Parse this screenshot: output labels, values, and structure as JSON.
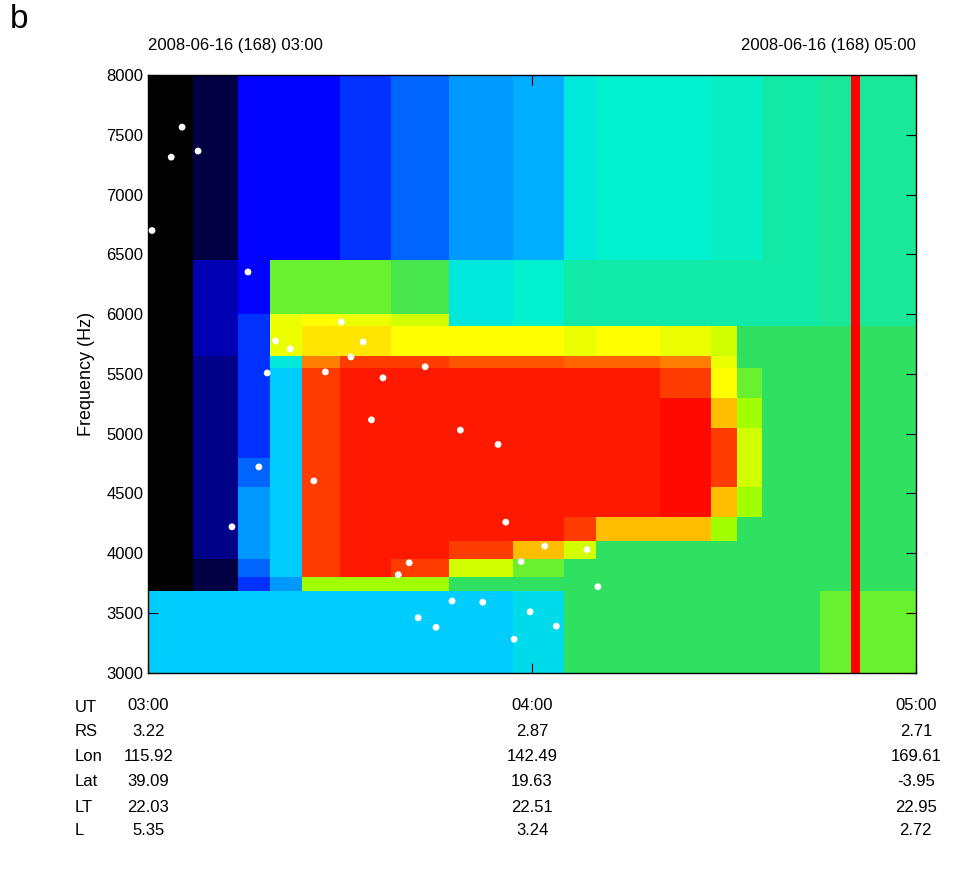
{
  "chart_data": {
    "type": "heatmap",
    "panel": "b",
    "header_left": "2008-06-16 (168) 03:00",
    "header_right": "2008-06-16 (168) 05:00",
    "ylabel": "Frequency (Hz)",
    "x_label": "UT",
    "xlim": [
      0,
      120
    ],
    "ylim": [
      3000,
      8000
    ],
    "xticks": [
      {
        "value": 0,
        "label": "03:00"
      },
      {
        "value": 60,
        "label": "04:00"
      },
      {
        "value": 120,
        "label": "05:00"
      }
    ],
    "yticks": [
      3000,
      3500,
      4000,
      4500,
      5000,
      5500,
      6000,
      6500,
      7000,
      7500,
      8000
    ],
    "grid": false,
    "ephemeris": [
      {
        "label": "RS",
        "values": [
          3.22,
          2.87,
          2.71
        ]
      },
      {
        "label": "Lon",
        "values": [
          115.92,
          142.49,
          169.61
        ]
      },
      {
        "label": "Lat",
        "values": [
          39.09,
          19.63,
          -3.95
        ]
      },
      {
        "label": "LT",
        "values": [
          22.03,
          22.51,
          22.95
        ]
      },
      {
        "label": "L",
        "values": [
          5.35,
          3.24,
          2.72
        ]
      }
    ],
    "x_edges": [
      0,
      7,
      14,
      19,
      24,
      30,
      38,
      47,
      57,
      65,
      70,
      80,
      88,
      92,
      96,
      105,
      109.8,
      111.3,
      120
    ],
    "y_edges": [
      3000,
      3340,
      3680,
      3800,
      3950,
      4100,
      4300,
      4550,
      4800,
      5050,
      5300,
      5550,
      5650,
      5900,
      6000,
      6450,
      7200,
      8000
    ],
    "color_range": [
      0,
      10
    ],
    "cells": [
      [
        4.5,
        4.5,
        4.5,
        4.5,
        4.5,
        4.5,
        4.5,
        4.5,
        4.8,
        6,
        6,
        6,
        6,
        6,
        6,
        6.5,
        10,
        6.5
      ],
      [
        4.5,
        4.5,
        4.5,
        4.5,
        4.5,
        4.5,
        4.5,
        4.5,
        4.8,
        6,
        6,
        6,
        6,
        6,
        6,
        6.5,
        10,
        6.5
      ],
      [
        0,
        0.5,
        3,
        4,
        7,
        7,
        7,
        6,
        6,
        6,
        6,
        6,
        6,
        6,
        6,
        6,
        10,
        6
      ],
      [
        0,
        0.5,
        3.5,
        4.5,
        9.5,
        9.8,
        9.5,
        7.5,
        6.5,
        6,
        6,
        6,
        6,
        6,
        6,
        6,
        10,
        6
      ],
      [
        0,
        1,
        4,
        4.5,
        9.5,
        9.8,
        9.8,
        9.5,
        8.5,
        7.5,
        6,
        6,
        6,
        6,
        6,
        6,
        10,
        6
      ],
      [
        0,
        1,
        4,
        4.5,
        9.5,
        9.8,
        9.8,
        9.8,
        9.8,
        9.5,
        8.5,
        8.5,
        7,
        6,
        6,
        6,
        10,
        6
      ],
      [
        0,
        1,
        4,
        4.5,
        9.5,
        9.8,
        9.8,
        9.8,
        9.8,
        9.8,
        9.8,
        9.9,
        8.5,
        7,
        6,
        6,
        10,
        6
      ],
      [
        0,
        1,
        3.5,
        4.5,
        9.5,
        9.8,
        9.8,
        9.8,
        9.8,
        9.8,
        9.8,
        9.9,
        9.5,
        7.5,
        6,
        6,
        10,
        6
      ],
      [
        0,
        1,
        3,
        4.5,
        9.5,
        9.8,
        9.8,
        9.8,
        9.8,
        9.8,
        9.8,
        9.9,
        9.5,
        7.5,
        6,
        6,
        10,
        6
      ],
      [
        0,
        1,
        3,
        4.5,
        9.5,
        9.8,
        9.8,
        9.8,
        9.8,
        9.8,
        9.8,
        9.9,
        8.5,
        7,
        6,
        6,
        10,
        6
      ],
      [
        0,
        1,
        3,
        4.5,
        9.5,
        9.8,
        9.8,
        9.8,
        9.8,
        9.8,
        9.8,
        9.5,
        8,
        6.5,
        6,
        6,
        10,
        6
      ],
      [
        0,
        1,
        3,
        5,
        9,
        9.5,
        9.5,
        9.3,
        9.3,
        9.2,
        9.2,
        9,
        7.8,
        6,
        6,
        6,
        10,
        6
      ],
      [
        0,
        1.5,
        3,
        7.8,
        8.2,
        8.2,
        8,
        8,
        8,
        7.8,
        8,
        7.8,
        7.5,
        6,
        6,
        6,
        10,
        6
      ],
      [
        0,
        1.5,
        3,
        7.8,
        8,
        7.8,
        7.5,
        5,
        5.2,
        5.5,
        5.5,
        5.5,
        5.5,
        5.5,
        5.5,
        5.6,
        10,
        5.6
      ],
      [
        0,
        1.5,
        2.5,
        6.5,
        6.5,
        6.5,
        6.2,
        5,
        5.2,
        5.5,
        5.5,
        5.5,
        5.5,
        5.5,
        5.5,
        5.6,
        10,
        5.6
      ],
      [
        0,
        0.5,
        2.5,
        2.5,
        2.5,
        3,
        3.5,
        4,
        4.2,
        5,
        5.2,
        5.2,
        5.3,
        5.3,
        5.5,
        5.6,
        10,
        5.6
      ],
      [
        0,
        0.5,
        2.5,
        2.5,
        2.5,
        3,
        3.5,
        4,
        4.2,
        5,
        5.2,
        5.2,
        5.3,
        5.3,
        5.5,
        5.6,
        10,
        5.6
      ]
    ],
    "series": [
      {
        "type": "scatter",
        "color": "#ffffff",
        "marker": "o",
        "x": [
          0.6,
          3.6,
          5.3,
          7.8,
          13.1,
          15.6,
          17.3,
          18.6,
          19.9,
          22.2,
          25.9,
          27.7,
          30.2,
          31.7,
          33.6,
          34.9,
          36.7,
          39.1,
          40.8,
          42.2,
          43.3,
          45.0,
          47.5,
          48.8,
          52.3,
          54.7,
          55.9,
          57.2,
          58.3,
          59.7,
          62.0,
          63.8,
          68.6,
          70.3
        ],
        "y": [
          6700,
          7314,
          7565,
          7365,
          4221,
          6353,
          4722,
          5508,
          5776,
          5709,
          4605,
          5517,
          5935,
          5642,
          5768,
          5116,
          5467,
          3820,
          3920,
          3460,
          5560,
          3380,
          3600,
          5030,
          3590,
          4910,
          4260,
          3280,
          3930,
          3510,
          4060,
          3390,
          4030,
          3720
        ]
      }
    ]
  }
}
